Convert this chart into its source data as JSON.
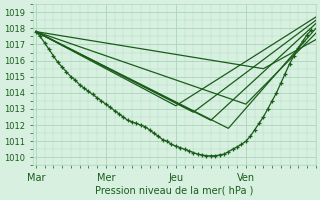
{
  "xlabel": "Pression niveau de la mer( hPa )",
  "bg_color": "#d8f0e0",
  "grid_color": "#b0d8c0",
  "line_color": "#1a5c1a",
  "ylim": [
    1009.5,
    1019.5
  ],
  "yticks": [
    1010,
    1011,
    1012,
    1013,
    1014,
    1015,
    1016,
    1017,
    1018,
    1019
  ],
  "xtick_labels": [
    "Mar",
    "Mer",
    "Jeu",
    "Ven"
  ],
  "xtick_positions": [
    0,
    48,
    96,
    144
  ],
  "xlim": [
    -2,
    192
  ],
  "detail_series_x": [
    0,
    3,
    6,
    9,
    12,
    15,
    18,
    21,
    24,
    27,
    30,
    33,
    36,
    39,
    42,
    45,
    48,
    51,
    54,
    57,
    60,
    63,
    66,
    69,
    72,
    75,
    78,
    81,
    84,
    87,
    90,
    93,
    96,
    99,
    102,
    105,
    108,
    111,
    114,
    117,
    120,
    123,
    126,
    129,
    132,
    135,
    138,
    141,
    144,
    147,
    150,
    153,
    156,
    159,
    162,
    165,
    168,
    171,
    174,
    177,
    180,
    183,
    186,
    189
  ],
  "detail_series_y": [
    1017.8,
    1017.5,
    1017.1,
    1016.7,
    1016.3,
    1015.9,
    1015.6,
    1015.3,
    1015.0,
    1014.8,
    1014.5,
    1014.3,
    1014.1,
    1013.9,
    1013.7,
    1013.5,
    1013.3,
    1013.1,
    1012.9,
    1012.7,
    1012.5,
    1012.3,
    1012.2,
    1012.1,
    1012.0,
    1011.9,
    1011.7,
    1011.5,
    1011.3,
    1011.1,
    1011.0,
    1010.8,
    1010.7,
    1010.6,
    1010.5,
    1010.4,
    1010.3,
    1010.2,
    1010.15,
    1010.1,
    1010.1,
    1010.1,
    1010.15,
    1010.2,
    1010.35,
    1010.5,
    1010.65,
    1010.8,
    1011.0,
    1011.3,
    1011.7,
    1012.1,
    1012.5,
    1013.0,
    1013.5,
    1014.0,
    1014.6,
    1015.2,
    1015.8,
    1016.3,
    1016.8,
    1017.2,
    1017.6,
    1017.9
  ],
  "straight_lines": [
    {
      "x0": 0,
      "y0": 1017.8,
      "xmin": 96,
      "ymin": 1013.2,
      "x1": 192,
      "y1": 1018.7
    },
    {
      "x0": 0,
      "y0": 1017.8,
      "xmin": 108,
      "ymin": 1012.8,
      "x1": 192,
      "y1": 1018.5
    },
    {
      "x0": 0,
      "y0": 1017.8,
      "xmin": 120,
      "ymin": 1012.3,
      "x1": 192,
      "y1": 1018.3
    },
    {
      "x0": 0,
      "y0": 1017.8,
      "xmin": 132,
      "ymin": 1011.8,
      "x1": 192,
      "y1": 1018.0
    },
    {
      "x0": 0,
      "y0": 1017.8,
      "xmin": 144,
      "ymin": 1013.3,
      "x1": 192,
      "y1": 1017.7
    },
    {
      "x0": 0,
      "y0": 1017.8,
      "xmin": 156,
      "ymin": 1015.5,
      "x1": 192,
      "y1": 1017.3
    }
  ]
}
